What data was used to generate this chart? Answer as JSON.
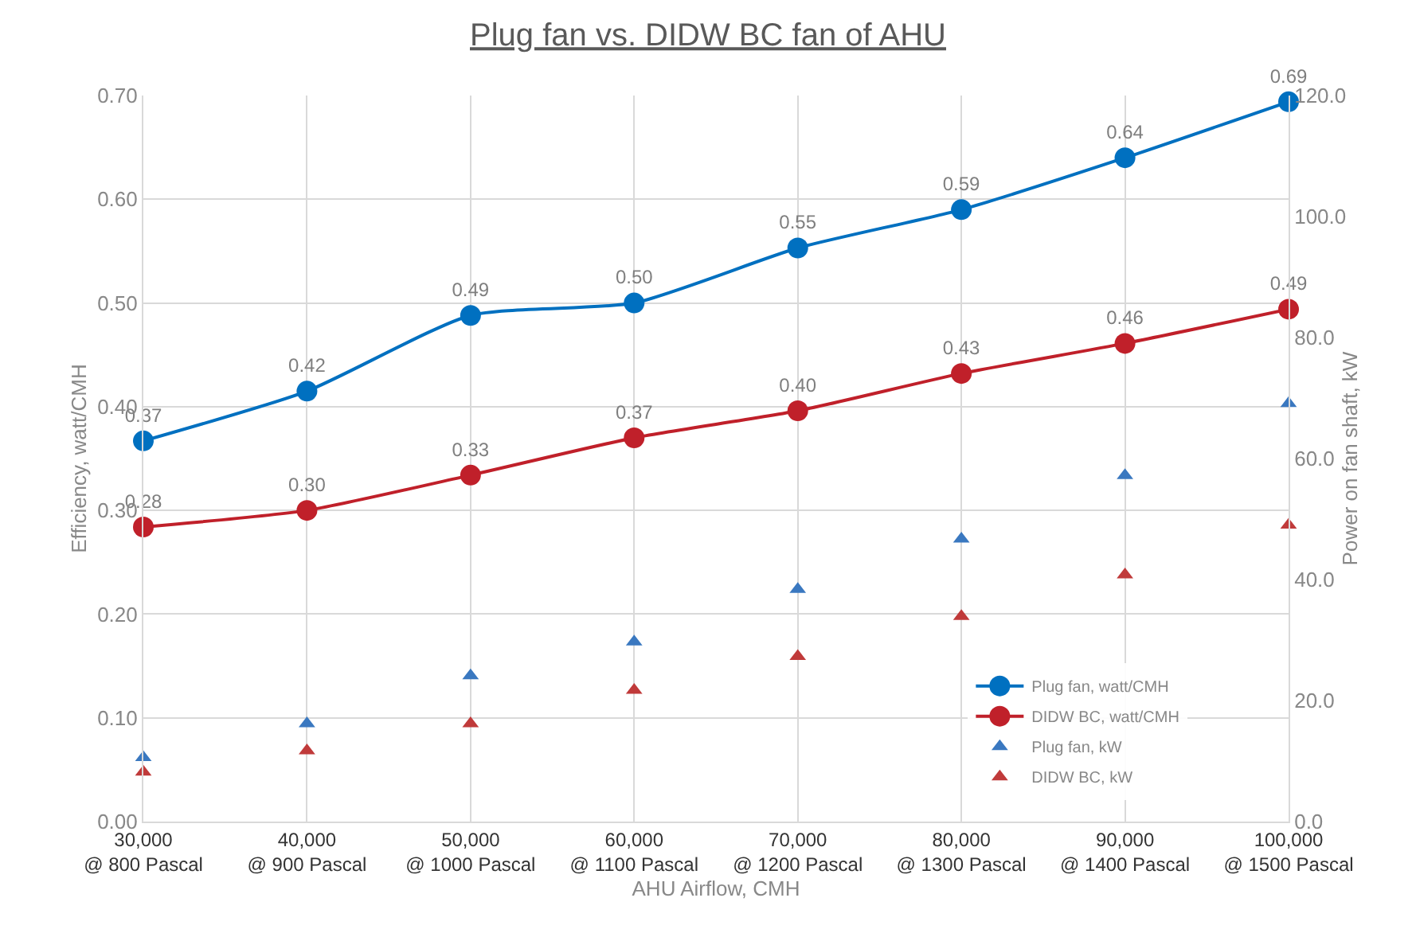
{
  "chart_data": {
    "type": "line",
    "title": "Plug fan vs. DIDW BC fan of AHU",
    "xlabel": "AHU Airflow, CMH",
    "ylabel": "Efficiency, watt/CMH",
    "y2label": "Power on fan shaft, kW",
    "categories": [
      "30,000\n@ 800 Pascal",
      "40,000\n@ 900 Pascal",
      "50,000\n@ 1000 Pascal",
      "60,000\n@ 1100 Pascal",
      "70,000\n@ 1200 Pascal",
      "80,000\n@ 1300 Pascal",
      "90,000\n@ 1400 Pascal",
      "100,000\n@ 1500 Pascal"
    ],
    "ylim": [
      0,
      0.7
    ],
    "yticks": [
      {
        "value": 0,
        "label": "0.00"
      },
      {
        "value": 0.1,
        "label": "0.10"
      },
      {
        "value": 0.2,
        "label": "0.20"
      },
      {
        "value": 0.3,
        "label": "0.30"
      },
      {
        "value": 0.4,
        "label": "0.40"
      },
      {
        "value": 0.5,
        "label": "0.50"
      },
      {
        "value": 0.6,
        "label": "0.60"
      },
      {
        "value": 0.7,
        "label": "0.70"
      }
    ],
    "y2lim": [
      0,
      120
    ],
    "y2ticks": [
      {
        "value": 0,
        "label": "0.0"
      },
      {
        "value": 20,
        "label": "20.0"
      },
      {
        "value": 40,
        "label": "40.0"
      },
      {
        "value": 60,
        "label": "60.0"
      },
      {
        "value": 80,
        "label": "80.0"
      },
      {
        "value": 100,
        "label": "100.0"
      },
      {
        "value": 120,
        "label": "120.0"
      }
    ],
    "grid": true,
    "legend": "bottom right",
    "line_style": "solid",
    "series": [
      {
        "name": "Plug fan, watt/CMH",
        "marker": "circle",
        "color": "#0070c0",
        "values": [
          0.367,
          0.415,
          0.488,
          0.5,
          0.553,
          0.59,
          0.64,
          0.694
        ],
        "value_labels": [
          "0.37",
          "0.42",
          "0.49",
          "0.50",
          "0.55",
          "0.59",
          "0.64",
          "0.69"
        ]
      },
      {
        "name": "DIDW BC, watt/CMH",
        "marker": "circle",
        "color": "#c0202a",
        "values": [
          0.284,
          0.3,
          0.334,
          0.37,
          0.396,
          0.432,
          0.461,
          0.494
        ],
        "value_labels": [
          "0.28",
          "0.30",
          "0.33",
          "0.37",
          "0.40",
          "0.43",
          "0.46",
          "0.49"
        ]
      },
      {
        "name": "Plug fan, kW",
        "type": "scatter",
        "marker": "triangle",
        "axis": "y2",
        "color": "#3a78c0",
        "values": [
          10.6,
          16.2,
          24.1,
          29.7,
          38.4,
          46.7,
          57.2,
          69.1
        ]
      },
      {
        "name": "DIDW BC, kW",
        "type": "scatter",
        "marker": "triangle",
        "axis": "y2",
        "color": "#c03a3a",
        "values": [
          8.2,
          11.7,
          16.2,
          21.7,
          27.3,
          33.9,
          40.8,
          49.0
        ]
      }
    ]
  }
}
